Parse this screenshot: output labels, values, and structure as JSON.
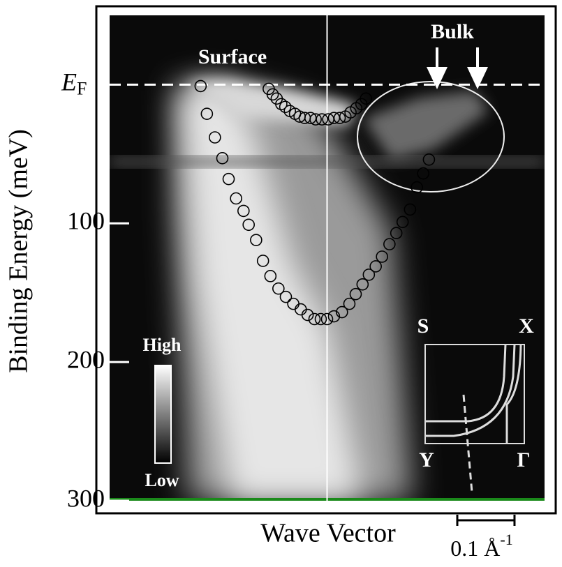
{
  "chart_data": {
    "type": "scatter",
    "y_label": "Binding Energy (meV)",
    "x_label": "Wave Vector",
    "ylim": [
      300,
      -50
    ],
    "yticks": [
      100,
      200,
      300
    ],
    "xlim": [
      -0.38,
      0.38
    ],
    "reference_x": 0,
    "fermi_level": {
      "value": 0,
      "label": "E",
      "subscript": "F"
    },
    "annotations": {
      "surface": "Surface",
      "bulk": "Bulk",
      "high": "High",
      "low": "Low"
    },
    "inset_labels": [
      "S",
      "X",
      "Y",
      "Γ"
    ],
    "scale_bar": {
      "length": 0.1,
      "label": "0.1 Å",
      "exponent": "-1"
    },
    "marker_color": "#000000",
    "series": [
      {
        "x": [
          -0.221,
          -0.21,
          -0.196,
          -0.183,
          -0.172,
          -0.159,
          -0.146,
          -0.137,
          -0.124,
          -0.112,
          -0.099,
          -0.085,
          -0.072,
          -0.059,
          -0.046,
          -0.034,
          -0.022,
          -0.011,
          0.0,
          0.012,
          0.026,
          0.039,
          0.05,
          0.062,
          0.073,
          0.085,
          0.096,
          0.109,
          0.121,
          0.132,
          0.145,
          0.157,
          0.168,
          0.178
        ],
        "values": [
          1,
          21,
          38,
          53,
          68,
          82,
          91,
          101,
          112,
          127,
          138,
          147,
          153,
          158,
          162,
          166,
          169,
          169,
          169,
          167,
          164,
          158,
          151,
          144,
          137,
          131,
          124,
          115,
          107,
          99,
          90,
          74,
          64,
          54
        ]
      },
      {
        "x": [
          -0.102,
          -0.095,
          -0.088,
          -0.08,
          -0.073,
          -0.065,
          -0.056,
          -0.048,
          -0.039,
          -0.029,
          -0.02,
          -0.009,
          0.002,
          0.012,
          0.022,
          0.032,
          0.041,
          0.051,
          0.06,
          0.068
        ],
        "values": [
          3,
          7,
          10,
          14,
          16,
          19,
          21,
          23,
          24,
          24,
          25,
          25,
          25,
          24,
          24,
          23,
          20,
          17,
          14,
          10
        ]
      }
    ]
  }
}
